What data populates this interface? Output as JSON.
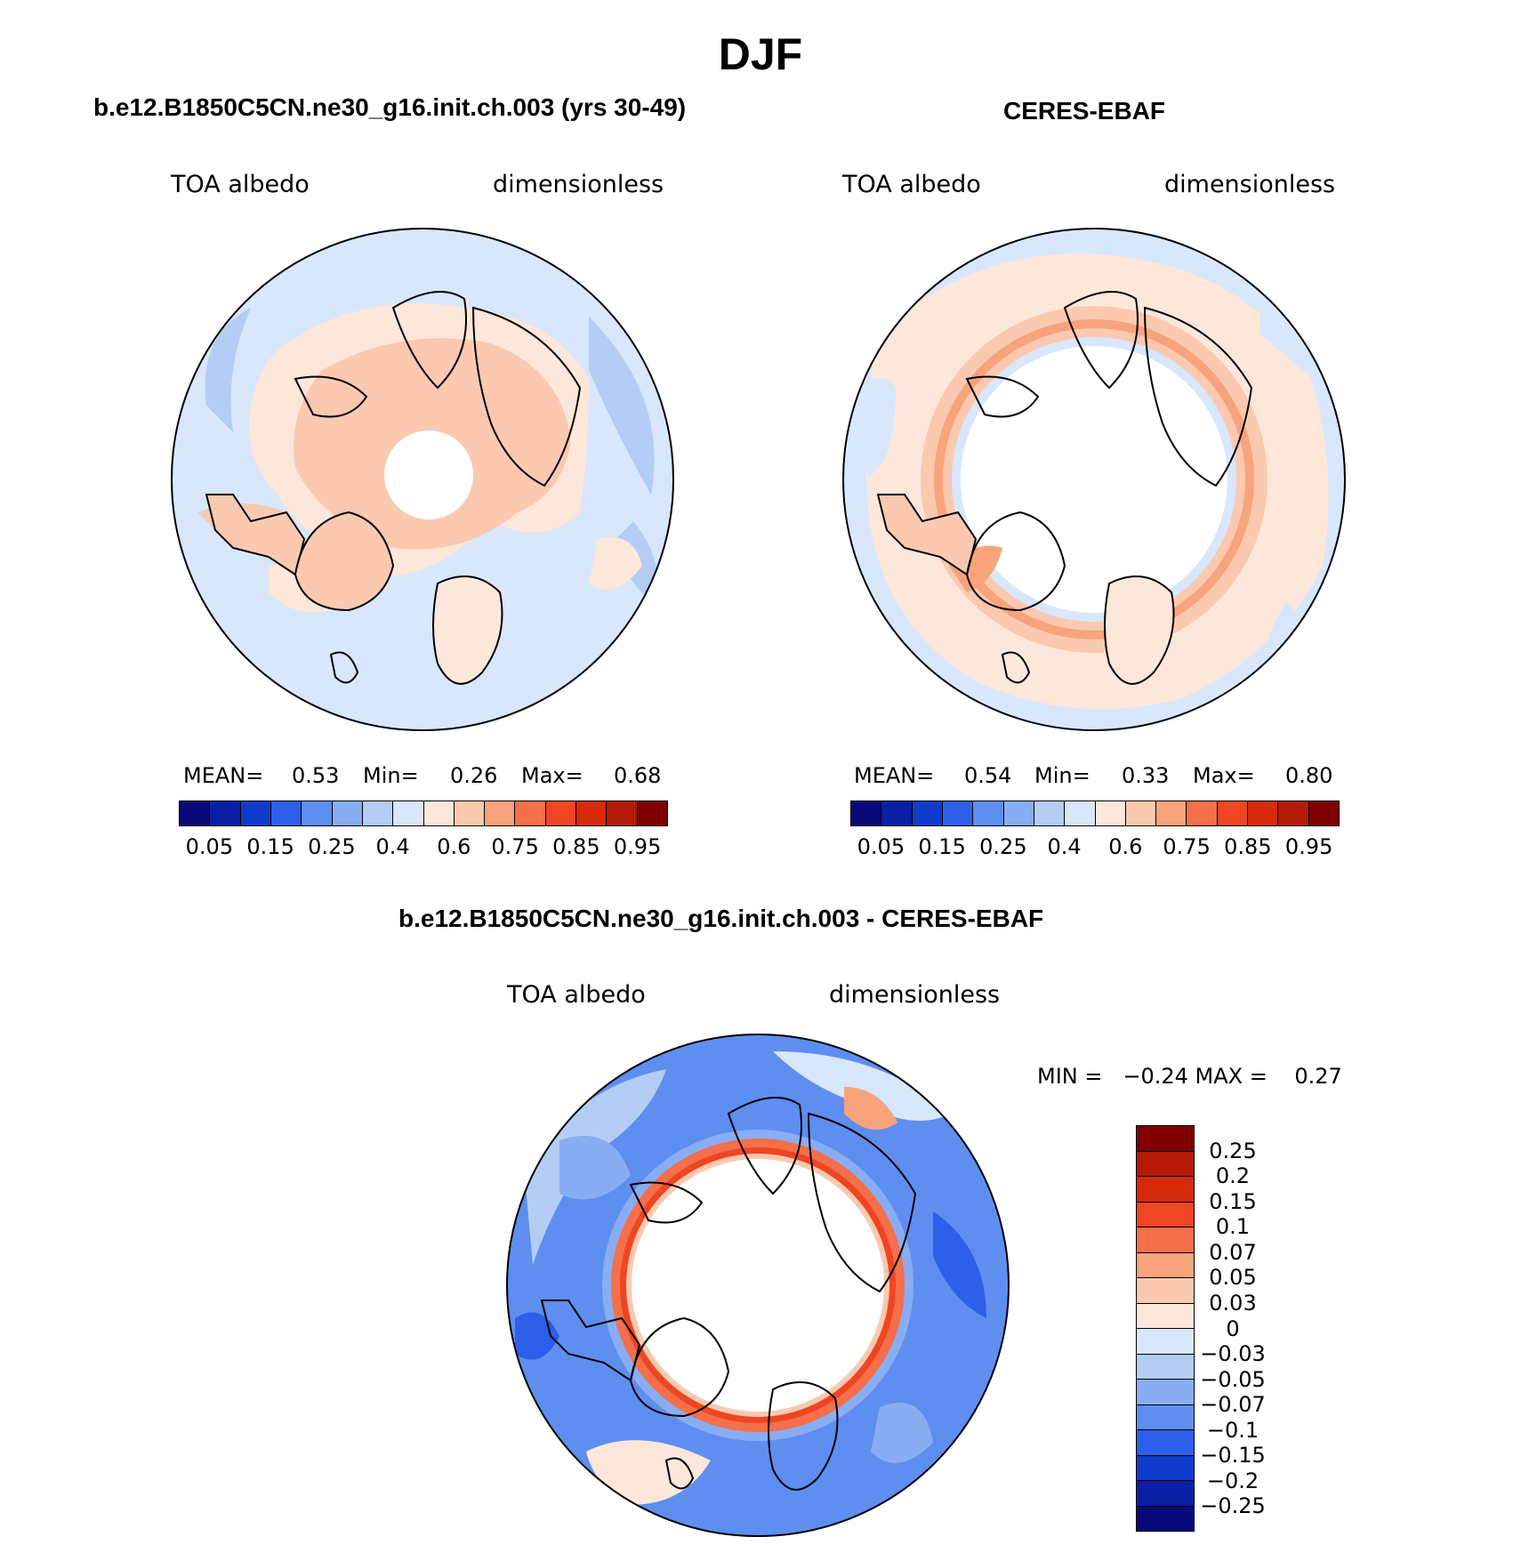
{
  "title": "DJF",
  "panels": [
    {
      "case_title": "b.e12.B1850C5CN.ne30_g16.init.ch.003 (yrs 30-49)",
      "variable": "TOA albedo",
      "units": "dimensionless",
      "mean_label": "MEAN=",
      "mean": "0.53",
      "min_label": "Min=",
      "min": "0.26",
      "max_label": "Max=",
      "max": "0.68"
    },
    {
      "case_title": "CERES-EBAF",
      "variable": "TOA albedo",
      "units": "dimensionless",
      "mean_label": "MEAN=",
      "mean": "0.54",
      "min_label": "Min=",
      "min": "0.33",
      "max_label": "Max=",
      "max": "0.80"
    }
  ],
  "colorbar": {
    "colors": [
      "#08087a",
      "#0a1fa5",
      "#0f3ccc",
      "#2d5fea",
      "#5e8ef0",
      "#89adf2",
      "#b4cdf5",
      "#d8e7fb",
      "#fde7da",
      "#fbc9b0",
      "#f7a37c",
      "#f46f4a",
      "#ee4522",
      "#d62a0a",
      "#b41a06",
      "#7f0000"
    ],
    "tick_labels": [
      "0.05",
      "0.15",
      "0.25",
      "0.4",
      "0.6",
      "0.75",
      "0.85",
      "0.95"
    ]
  },
  "diff": {
    "case_title": "b.e12.B1850C5CN.ne30_g16.init.ch.003 - CERES-EBAF",
    "variable": "TOA albedo",
    "units": "dimensionless",
    "minmax_text": "MIN =   −0.24 MAX =    0.27",
    "colorbar": {
      "colors_top_to_bottom": [
        "#7f0000",
        "#b41a06",
        "#d62a0a",
        "#ee4522",
        "#f46f4a",
        "#f7a37c",
        "#fbc9b0",
        "#fde7da",
        "#d8e7fb",
        "#b4cdf5",
        "#89adf2",
        "#5e8ef0",
        "#2d5fea",
        "#0f3ccc",
        "#0a1fa5",
        "#08087a"
      ],
      "tick_labels": [
        "0.25",
        "0.2",
        "0.15",
        "0.1",
        "0.07",
        "0.05",
        "0.03",
        "0",
        "−0.03",
        "−0.05",
        "−0.07",
        "−0.1",
        "−0.15",
        "−0.2",
        "−0.25"
      ]
    }
  }
}
